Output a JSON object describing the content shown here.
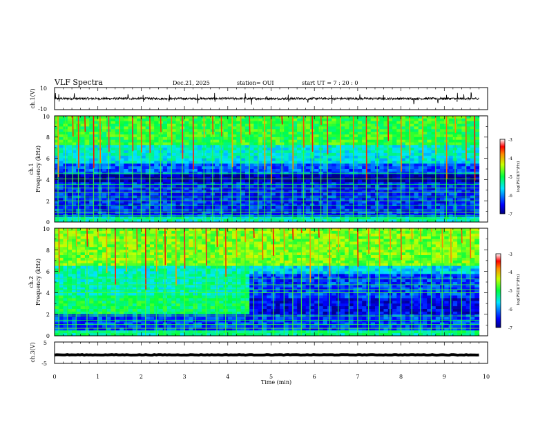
{
  "header": {
    "title": "VLF Spectra",
    "date": "Dec.21, 2025",
    "station": "station= OUI",
    "start": "start  UT =   7 : 20 : 0"
  },
  "chart_data": [
    {
      "type": "line",
      "id": "ch1-waveform",
      "ylabel": "ch.1(V)",
      "ylim": [
        -10,
        10
      ],
      "yticks": [
        "10",
        "-10"
      ],
      "xlim": [
        0,
        10
      ],
      "x_end": 9.8,
      "baseline": 0,
      "noise_amplitude": 1.0,
      "spikes": [
        0.02,
        0.1,
        0.46,
        1.7,
        2.05,
        2.65,
        3.3,
        3.7,
        4.4,
        4.55,
        4.9,
        5.4,
        5.85,
        6.4,
        7.05,
        7.6,
        8.3,
        8.85,
        9.05,
        9.3,
        9.45,
        9.62
      ],
      "color": "#000000"
    },
    {
      "type": "heatmap",
      "id": "ch1-spectrogram",
      "ylabel": "ch.1",
      "ylabel2": "Frequency  (kHz)",
      "ylim": [
        0,
        10
      ],
      "xlim": [
        0,
        10
      ],
      "x_end": 9.8,
      "yticks": [
        "0",
        "2",
        "4",
        "6",
        "8",
        "10"
      ],
      "colorbar": {
        "min": -7,
        "max": -3,
        "ticks": [
          "-3",
          "-4",
          "-5",
          "-6",
          "-7"
        ],
        "label": "log(PSD)(V²/Hz)"
      },
      "bands": [
        {
          "f0": 0,
          "f1": 0.5,
          "level": -5.4
        },
        {
          "f0": 0.5,
          "f1": 3.8,
          "level": -6.4
        },
        {
          "f0": 3.8,
          "f1": 4.4,
          "level": -6.9
        },
        {
          "f0": 4.4,
          "f1": 5.6,
          "level": -6.2
        },
        {
          "f0": 5.6,
          "f1": 6.3,
          "level": -5.6
        },
        {
          "f0": 6.3,
          "f1": 7.2,
          "level": -5.5
        },
        {
          "f0": 7.2,
          "f1": 10,
          "level": -4.9
        }
      ],
      "events": [
        0.08,
        0.25,
        0.42,
        0.55,
        0.7,
        0.9,
        1.05,
        1.25,
        1.5,
        1.8,
        2.0,
        2.2,
        2.45,
        2.7,
        2.95,
        3.2,
        3.45,
        3.65,
        3.85,
        4.1,
        4.3,
        4.5,
        4.7,
        4.85,
        5.0,
        5.25,
        5.5,
        5.75,
        5.95,
        6.15,
        6.3,
        6.6,
        6.9,
        7.2,
        7.45,
        7.7,
        8.0,
        8.2,
        8.5,
        8.8,
        9.05,
        9.25,
        9.5,
        9.7
      ],
      "hlines": [
        0.3,
        0.6,
        0.9,
        1.15,
        1.6,
        2.0,
        2.35,
        2.8,
        3.2,
        3.55,
        4.05,
        4.6
      ]
    },
    {
      "type": "heatmap",
      "id": "ch2-spectrogram",
      "ylabel": "ch.2",
      "ylabel2": "Frequency  (kHz)",
      "ylim": [
        0,
        10
      ],
      "xlim": [
        0,
        10
      ],
      "x_end": 9.8,
      "yticks": [
        "0",
        "2",
        "4",
        "6",
        "8",
        "10"
      ],
      "colorbar": {
        "min": -7,
        "max": -3,
        "ticks": [
          "-3",
          "-4",
          "-5",
          "-6",
          "-7"
        ],
        "label": "log(PSD)(V²/Hz)"
      },
      "bands": [
        {
          "f0": 0,
          "f1": 0.5,
          "level": -5.3
        },
        {
          "f0": 0.5,
          "f1": 2.0,
          "level": -6.3
        },
        {
          "f0": 2.0,
          "f1": 3.5,
          "level": -6.6
        },
        {
          "f0": 3.5,
          "f1": 5.8,
          "level": -6.3
        },
        {
          "f0": 5.8,
          "f1": 6.4,
          "level": -5.7
        },
        {
          "f0": 6.4,
          "f1": 10,
          "level": -4.6
        }
      ],
      "patch": {
        "x0": 0,
        "x1": 4.5,
        "f0": 2.0,
        "f1": 3.8,
        "level": -5.1
      },
      "patch2": {
        "x0": 0,
        "x1": 4.5,
        "f0": 3.8,
        "f1": 6.4,
        "level": -5.4
      },
      "events": [
        0.1,
        0.3,
        0.5,
        0.75,
        1.0,
        1.2,
        1.4,
        1.65,
        1.9,
        2.1,
        2.35,
        2.55,
        2.8,
        3.0,
        3.25,
        3.5,
        3.75,
        3.95,
        4.2,
        4.4,
        4.6,
        4.8,
        5.05,
        5.3,
        5.5,
        5.7,
        5.9,
        6.1,
        6.35,
        6.55,
        6.8,
        7.0,
        7.25,
        7.5,
        7.75,
        8.0,
        8.25,
        8.45,
        8.7,
        8.95,
        9.15,
        9.4,
        9.6
      ],
      "hlines": [
        0.35,
        0.7,
        1.05,
        1.45,
        1.85,
        4.0,
        4.3,
        4.75,
        5.3
      ]
    },
    {
      "type": "line",
      "id": "ch3-waveform",
      "ylabel": "ch.3(V)",
      "ylim": [
        -5,
        5
      ],
      "yticks": [
        "5",
        "-5"
      ],
      "xlim": [
        0,
        10
      ],
      "x_end": 9.8,
      "baseline": -1.0,
      "noise_amplitude": 0.15,
      "spikes": [],
      "color": "#000000"
    }
  ],
  "xaxis": {
    "label": "Time  (min)",
    "ticks": [
      "0",
      "1",
      "2",
      "3",
      "4",
      "5",
      "6",
      "7",
      "8",
      "9",
      "10"
    ]
  }
}
